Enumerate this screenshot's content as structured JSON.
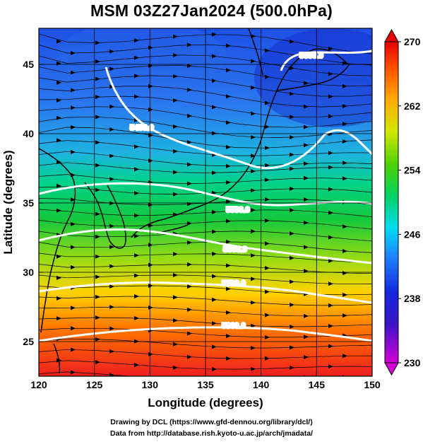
{
  "title": "MSM 03Z27Jan2024 (500.0hPa)",
  "credits": {
    "line1": "Drawing by DCL (https://www.gfd-dennou.org/library/dcl/)",
    "line2": "Data from http://database.rish.kyoto-u.ac.jp/arch/jmadata/"
  },
  "chart_data": {
    "type": "heatmap",
    "title": "MSM 03Z27Jan2024 (500.0hPa)",
    "xlabel": "Longitude (degrees)",
    "ylabel": "Latitude  (degrees)",
    "xlim": [
      120,
      150
    ],
    "ylim": [
      22.5,
      47.6
    ],
    "x_ticks": [
      120,
      125,
      130,
      135,
      140,
      145,
      150
    ],
    "y_ticks": [
      25,
      30,
      35,
      40,
      45
    ],
    "grid": true,
    "colorbar": {
      "min": 230,
      "max": 270,
      "ticks": [
        230,
        238,
        246,
        254,
        262,
        270
      ],
      "colors": [
        "#d400d4",
        "#1010c8",
        "#1e64ff",
        "#00d2f0",
        "#00d250",
        "#b4e600",
        "#ffc800",
        "#ff5000",
        "#e60000"
      ]
    },
    "contours": [
      {
        "label": "5300.0"
      },
      {
        "label": "5400.0"
      },
      {
        "label": "5500.0"
      },
      {
        "label": "5600.0"
      },
      {
        "label": "5700.0"
      },
      {
        "label": "5800.0"
      }
    ],
    "overlay": "streamlines (wind direction, mostly west to east)"
  }
}
